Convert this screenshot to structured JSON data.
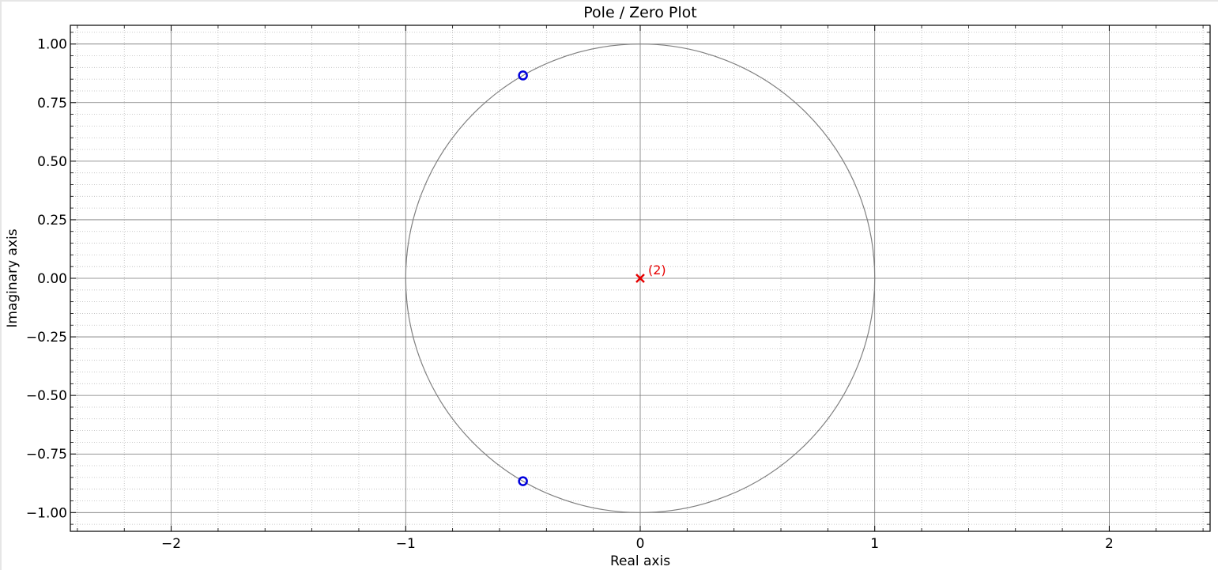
{
  "chart_data": {
    "type": "scatter",
    "title": "Pole / Zero Plot",
    "xlabel": "Real axis",
    "ylabel": "Imaginary axis",
    "xlim": [
      -2.43,
      2.43
    ],
    "ylim": [
      -1.08,
      1.08
    ],
    "grid": "major and minor",
    "x_ticks": [
      {
        "value": -2,
        "label": "−2"
      },
      {
        "value": -1,
        "label": "−1"
      },
      {
        "value": 0,
        "label": "0"
      },
      {
        "value": 1,
        "label": "1"
      },
      {
        "value": 2,
        "label": "2"
      }
    ],
    "y_ticks": [
      {
        "value": 1.0,
        "label": "1.00"
      },
      {
        "value": 0.75,
        "label": "0.75"
      },
      {
        "value": 0.5,
        "label": "0.50"
      },
      {
        "value": 0.25,
        "label": "0.25"
      },
      {
        "value": 0.0,
        "label": "0.00"
      },
      {
        "value": -0.25,
        "label": "−0.25"
      },
      {
        "value": -0.5,
        "label": "−0.50"
      },
      {
        "value": -0.75,
        "label": "−0.75"
      },
      {
        "value": -1.0,
        "label": "−1.00"
      }
    ],
    "unit_circle": {
      "radius": 1,
      "color": "#808080"
    },
    "zeros": {
      "marker": "circle",
      "color": "#0000dd",
      "points": [
        {
          "x": -0.5,
          "y": 0.866
        },
        {
          "x": -0.5,
          "y": -0.866
        }
      ]
    },
    "poles": {
      "marker": "cross",
      "color": "#e60000",
      "points": [
        {
          "x": 0.0,
          "y": 0.0,
          "multiplicity_label": "(2)"
        }
      ]
    }
  }
}
